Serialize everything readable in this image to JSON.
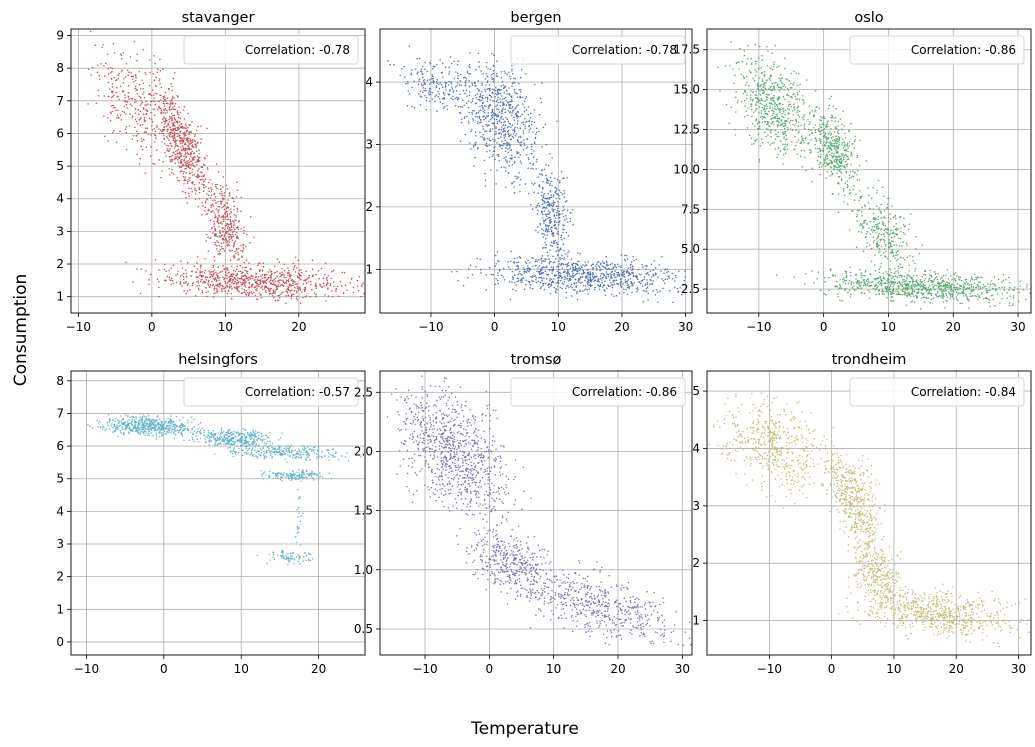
{
  "figure": {
    "xlabel": "Temperature",
    "ylabel": "Consumption"
  },
  "chart_data": [
    {
      "type": "scatter",
      "title": "stavanger",
      "color": "#c44e52",
      "legend": "Correlation: -0.78",
      "legend_position": "top-right",
      "grid": true,
      "xlim": [
        -11,
        29
      ],
      "ylim": [
        0.5,
        9.2
      ],
      "xticks": [
        -10,
        0,
        10,
        20
      ],
      "yticks": [
        1,
        2,
        3,
        4,
        5,
        6,
        7,
        8,
        9
      ],
      "clusters": [
        {
          "n": 620,
          "x": [
            0,
            8
          ],
          "y": [
            4.5,
            7
          ],
          "slope": -0.35
        },
        {
          "n": 260,
          "x": [
            -8,
            2
          ],
          "y": [
            5.5,
            8.5
          ],
          "slope": -0.2
        },
        {
          "n": 330,
          "x": [
            7,
            13
          ],
          "y": [
            2,
            4.5
          ],
          "slope": -0.2
        },
        {
          "n": 750,
          "x": [
            1,
            27
          ],
          "y": [
            0.95,
            2.0
          ],
          "slope": -0.01
        }
      ]
    },
    {
      "type": "scatter",
      "title": "bergen",
      "color": "#4c72b0",
      "legend": "Correlation: -0.78",
      "legend_position": "top-right",
      "grid": true,
      "xlim": [
        -18,
        31
      ],
      "ylim": [
        0.3,
        4.85
      ],
      "xticks": [
        -10,
        0,
        10,
        20,
        30
      ],
      "yticks": [
        1,
        2,
        3,
        4
      ],
      "clusters": [
        {
          "n": 650,
          "x": [
            -5,
            7
          ],
          "y": [
            2.5,
            4.3
          ],
          "slope": -0.06
        },
        {
          "n": 200,
          "x": [
            -15,
            -3
          ],
          "y": [
            3.5,
            4.4
          ],
          "slope": -0.02
        },
        {
          "n": 300,
          "x": [
            6,
            12
          ],
          "y": [
            1.2,
            2.6
          ],
          "slope": -0.08
        },
        {
          "n": 800,
          "x": [
            -1,
            29
          ],
          "y": [
            0.6,
            1.2
          ],
          "slope": -0.005
        }
      ]
    },
    {
      "type": "scatter",
      "title": "oslo",
      "color": "#55a868",
      "legend": "Correlation: -0.86",
      "legend_position": "top-right",
      "grid": true,
      "xlim": [
        -18,
        32
      ],
      "ylim": [
        1.0,
        18.8
      ],
      "xticks": [
        -10,
        0,
        10,
        20,
        30
      ],
      "yticks": [
        2.5,
        5.0,
        7.5,
        10.0,
        12.5,
        15.0,
        17.5
      ],
      "clusters": [
        {
          "n": 550,
          "x": [
            -14,
            -2
          ],
          "y": [
            11,
            17
          ],
          "slope": -0.25
        },
        {
          "n": 400,
          "x": [
            -2,
            5
          ],
          "y": [
            9,
            13.5
          ],
          "slope": -0.3
        },
        {
          "n": 300,
          "x": [
            4,
            14
          ],
          "y": [
            3.5,
            8.5
          ],
          "slope": -0.35
        },
        {
          "n": 800,
          "x": [
            0,
            30
          ],
          "y": [
            1.7,
            3.6
          ],
          "slope": -0.02
        }
      ]
    },
    {
      "type": "scatter",
      "title": "helsingfors",
      "color": "#64b5cd",
      "legend": "Correlation: -0.57",
      "legend_position": "top-right",
      "grid": true,
      "xlim": [
        -12,
        26
      ],
      "ylim": [
        -0.4,
        8.3
      ],
      "xticks": [
        -10,
        0,
        10,
        20
      ],
      "yticks": [
        0,
        1,
        2,
        3,
        4,
        5,
        6,
        7,
        8
      ],
      "clusters": [
        {
          "n": 500,
          "x": [
            -8,
            4
          ],
          "y": [
            6.3,
            6.9
          ],
          "slope": -0.01
        },
        {
          "n": 350,
          "x": [
            4,
            14
          ],
          "y": [
            6.0,
            6.5
          ],
          "slope": -0.01
        },
        {
          "n": 250,
          "x": [
            8,
            23
          ],
          "y": [
            5.6,
            6.0
          ],
          "slope": -0.005
        },
        {
          "n": 150,
          "x": [
            13,
            21
          ],
          "y": [
            4.95,
            5.25
          ],
          "slope": 0
        },
        {
          "n": 70,
          "x": [
            13,
            20
          ],
          "y": [
            2.4,
            2.8
          ],
          "slope": 0
        },
        {
          "n": 20,
          "x": [
            17,
            18
          ],
          "y": [
            3,
            5
          ],
          "slope": 0
        }
      ]
    },
    {
      "type": "scatter",
      "title": "tromsø",
      "color": "#8172b2",
      "legend": "Correlation: -0.86",
      "legend_position": "top-right",
      "grid": true,
      "xlim": [
        -17,
        31.5
      ],
      "ylim": [
        0.28,
        2.68
      ],
      "xticks": [
        -10,
        0,
        10,
        20,
        30
      ],
      "yticks": [
        0.5,
        1.0,
        1.5,
        2.0,
        2.5
      ],
      "clusters": [
        {
          "n": 900,
          "x": [
            -14,
            3
          ],
          "y": [
            1.5,
            2.5
          ],
          "slope": -0.03
        },
        {
          "n": 400,
          "x": [
            -3,
            10
          ],
          "y": [
            0.8,
            1.3
          ],
          "slope": -0.02
        },
        {
          "n": 500,
          "x": [
            6,
            29
          ],
          "y": [
            0.45,
            0.95
          ],
          "slope": -0.012
        }
      ]
    },
    {
      "type": "scatter",
      "title": "trondheim",
      "color": "#ccb974",
      "legend": "Correlation: -0.84",
      "legend_position": "top-right",
      "grid": true,
      "xlim": [
        -20,
        32
      ],
      "ylim": [
        0.4,
        5.35
      ],
      "xticks": [
        -10,
        0,
        10,
        20,
        30
      ],
      "yticks": [
        1,
        2,
        3,
        4,
        5
      ],
      "clusters": [
        {
          "n": 500,
          "x": [
            -18,
            -1
          ],
          "y": [
            3.3,
            4.8
          ],
          "slope": -0.03
        },
        {
          "n": 450,
          "x": [
            -1,
            8
          ],
          "y": [
            2.4,
            3.8
          ],
          "slope": -0.1
        },
        {
          "n": 300,
          "x": [
            3,
            11
          ],
          "y": [
            1.3,
            2.4
          ],
          "slope": -0.05
        },
        {
          "n": 650,
          "x": [
            5,
            29
          ],
          "y": [
            0.75,
            1.5
          ],
          "slope": -0.01
        }
      ]
    }
  ]
}
